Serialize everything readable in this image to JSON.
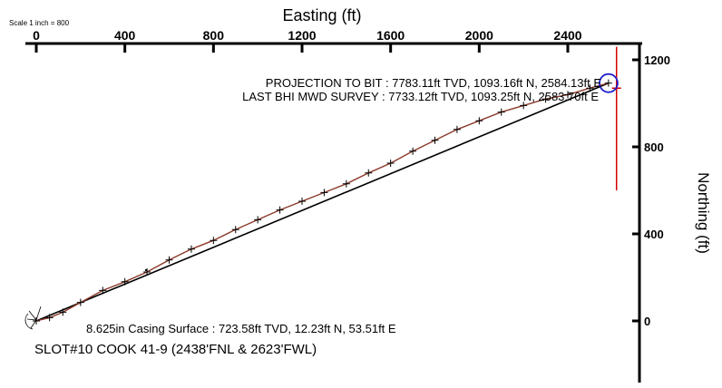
{
  "chart_data": {
    "type": "line",
    "title": "",
    "scale_note": "Scale 1 inch = 800",
    "xlabel": "Easting (ft)",
    "ylabel": "Northing (ft)",
    "x_ticks": [
      "0",
      "400",
      "800",
      "1200",
      "1600",
      "2000",
      "2400"
    ],
    "x_tick_values": [
      0,
      400,
      800,
      1200,
      1600,
      2000,
      2400
    ],
    "y_ticks": [
      "1200",
      "800",
      "400",
      "0"
    ],
    "y_tick_values": [
      1200,
      800,
      400,
      0
    ],
    "xlim": [
      -20,
      2740
    ],
    "ylim": [
      -200,
      1280
    ],
    "grid": false,
    "series": [
      {
        "role": "actual-survey-path",
        "color": "#000000",
        "marker": "+",
        "x": [
          0,
          60,
          120,
          200,
          300,
          400,
          500,
          600,
          700,
          800,
          900,
          1000,
          1100,
          1200,
          1300,
          1400,
          1500,
          1600,
          1700,
          1800,
          1900,
          2000,
          2100,
          2200,
          2300,
          2400,
          2500,
          2583.7
        ],
        "y": [
          0,
          15,
          40,
          85,
          140,
          180,
          225,
          280,
          330,
          370,
          420,
          465,
          510,
          550,
          590,
          630,
          680,
          725,
          780,
          830,
          880,
          920,
          960,
          990,
          1020,
          1040,
          1070,
          1093.25
        ]
      },
      {
        "role": "planned-path",
        "color": "#000000",
        "x": [
          0,
          2584.13
        ],
        "y": [
          0,
          1093.16
        ]
      },
      {
        "role": "target-line",
        "color": "#d40000",
        "x": [
          2620,
          2620
        ],
        "y": [
          600,
          1260
        ]
      }
    ],
    "target_point": {
      "x": 2620,
      "y": 1070,
      "color": "#d40000"
    },
    "bit_circle": {
      "x": 2584,
      "y": 1093,
      "color": "#2020cc"
    },
    "annotations": {
      "projection_to_bit": "PROJECTION TO BIT : 7783.11ft TVD, 1093.16ft N, 2584.13ft E",
      "last_survey": "LAST BHI MWD SURVEY : 7733.12ft TVD, 1093.25ft N, 2583.70ft E",
      "casing": "8.625in Casing Surface : 723.58ft TVD, 12.23ft N, 53.51ft E",
      "slot": "SLOT#10 COOK 41-9 (2438'FNL & 2623'FWL)"
    }
  }
}
